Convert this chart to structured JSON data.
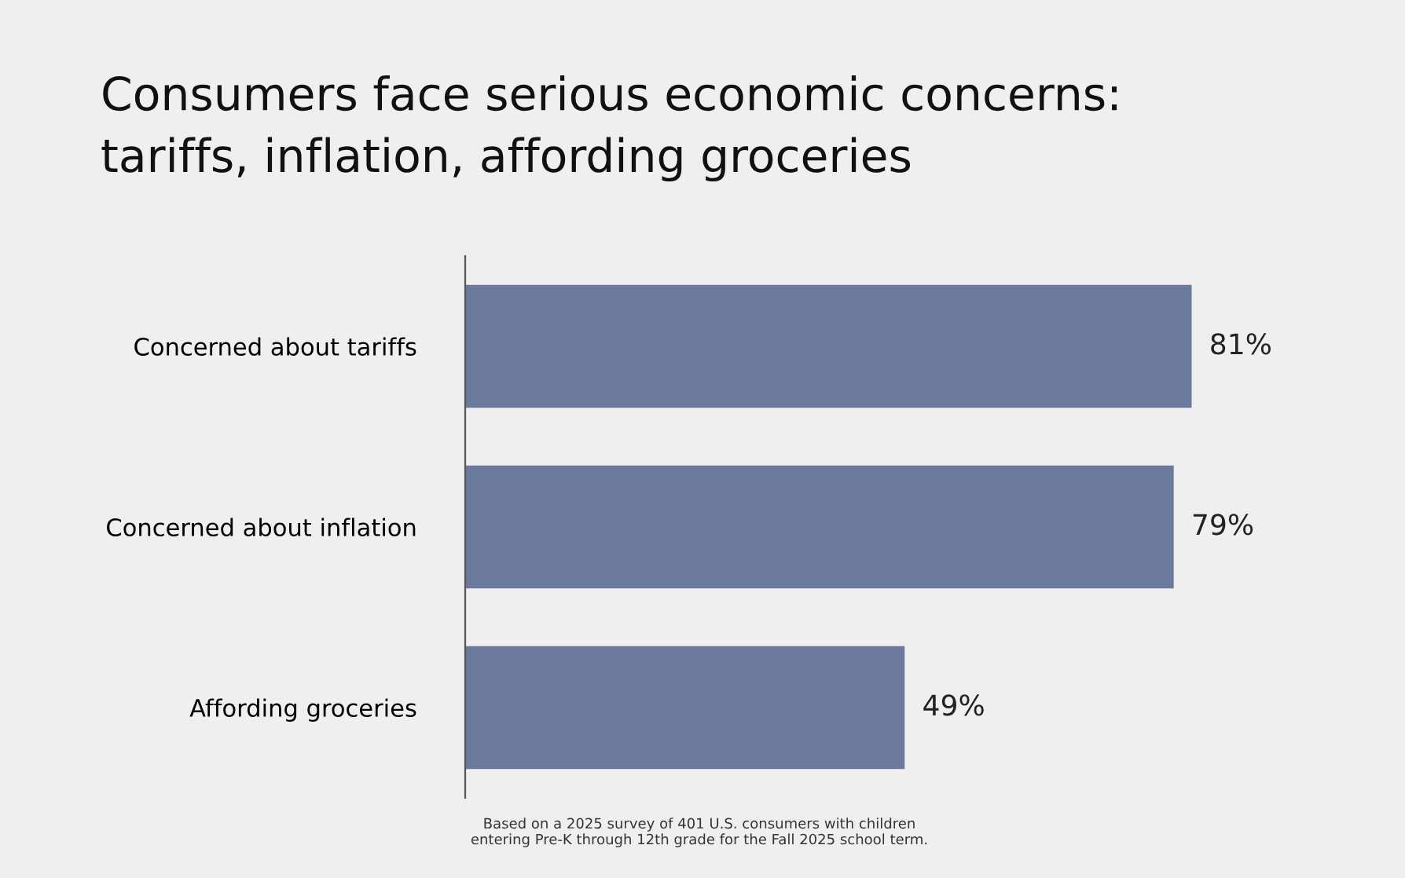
{
  "chart_data": {
    "type": "bar",
    "orientation": "horizontal",
    "title": "Consumers face serious economic concerns:\ntariffs, inflation, affording groceries",
    "categories": [
      "Concerned about tariffs",
      "Concerned about inflation",
      "Affording groceries"
    ],
    "values": [
      81,
      79,
      49
    ],
    "value_labels": [
      "81%",
      "79%",
      "49%"
    ],
    "color": "#6b7a9c",
    "grid": false,
    "legend": false,
    "annotations": [
      "Based on a 2025 survey of 401 U.S. consumers with children\nentering Pre-K through 12th grade for the Fall 2025 school term."
    ]
  }
}
